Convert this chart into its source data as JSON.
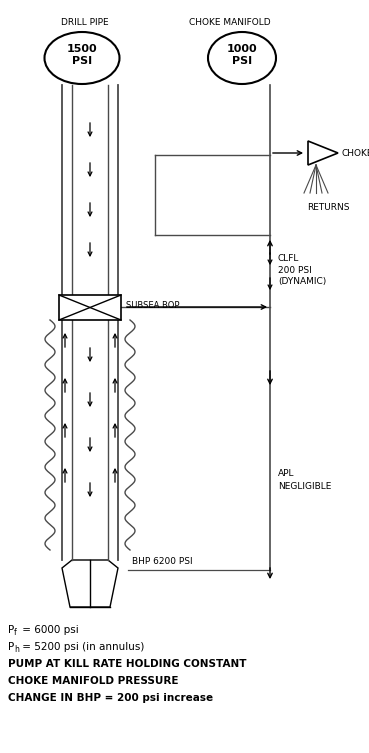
{
  "bg_color": "#ffffff",
  "line_color": "#4a4a4a",
  "text_color": "#000000",
  "title_drill": "DRILL PIPE",
  "title_choke": "CHOKE MANIFOLD",
  "psi_1500": "1500\nPSI",
  "psi_1000": "1000\nPSI",
  "label_choke": "CHOKE",
  "label_returns": "RETURNS",
  "label_clfl": "CLFL\n200 PSI\n(DYNAMIC)",
  "label_subsea": "SUBSEA BOP",
  "label_apl": "APL\nNEGLIGIBLE",
  "label_bhp": "BHP 6200 PSI",
  "fn1_pre": "P",
  "fn1_sub": "f",
  "fn1_post": " = 6000 psi",
  "fn2_pre": "P",
  "fn2_sub": "h",
  "fn2_post": " = 5200 psi (in annulus)",
  "fn3": "PUMP AT KILL RATE HOLDING CONSTANT",
  "fn4": "CHOKE MANIFOLD PRESSURE",
  "fn5": "CHANGE IN BHP = 200 psi increase"
}
